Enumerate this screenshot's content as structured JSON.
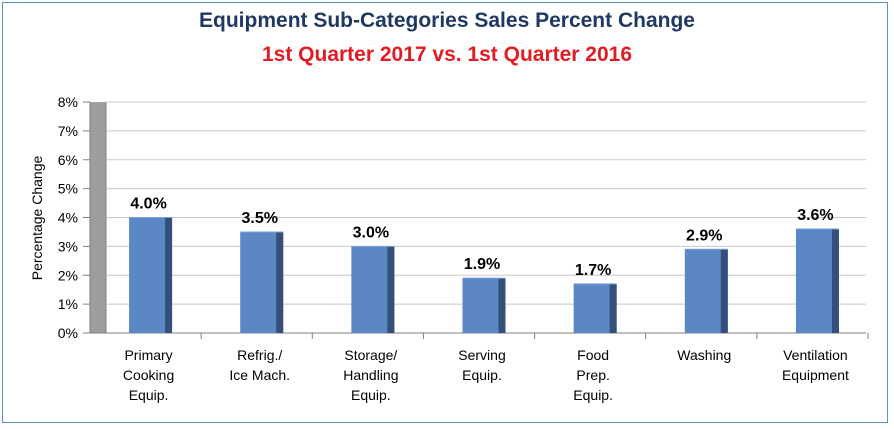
{
  "chart_data": {
    "type": "bar",
    "title": "Equipment Sub-Categories Sales Percent Change",
    "subtitle": "1st Quarter 2017 vs. 1st Quarter 2016",
    "xlabel": "",
    "ylabel": "Percentage Change",
    "ylim": [
      0,
      8
    ],
    "yticks": [
      "0%",
      "1%",
      "2%",
      "3%",
      "4%",
      "5%",
      "6%",
      "7%",
      "8%"
    ],
    "grid": true,
    "categories": [
      [
        "Primary",
        "Cooking",
        "Equip."
      ],
      [
        "Refrig./",
        "Ice Mach."
      ],
      [
        "Storage/",
        "Handling",
        "Equip."
      ],
      [
        "Serving",
        "Equip."
      ],
      [
        "Food",
        "Prep.",
        "Equip."
      ],
      [
        "Washing"
      ],
      [
        "Ventilation",
        "Equipment"
      ]
    ],
    "values": [
      4.0,
      3.5,
      3.0,
      1.9,
      1.7,
      2.9,
      3.6
    ],
    "data_labels": [
      "4.0%",
      "3.5%",
      "3.0%",
      "1.9%",
      "1.7%",
      "2.9%",
      "3.6%"
    ],
    "colors": {
      "bar": "#5b87c5",
      "bar_side": "#34507a",
      "wall": "#9e9e9e",
      "grid": "#c8c8c8",
      "title": "#1f3864",
      "subtitle": "#e31b23",
      "border": "#5b8fc9"
    }
  }
}
